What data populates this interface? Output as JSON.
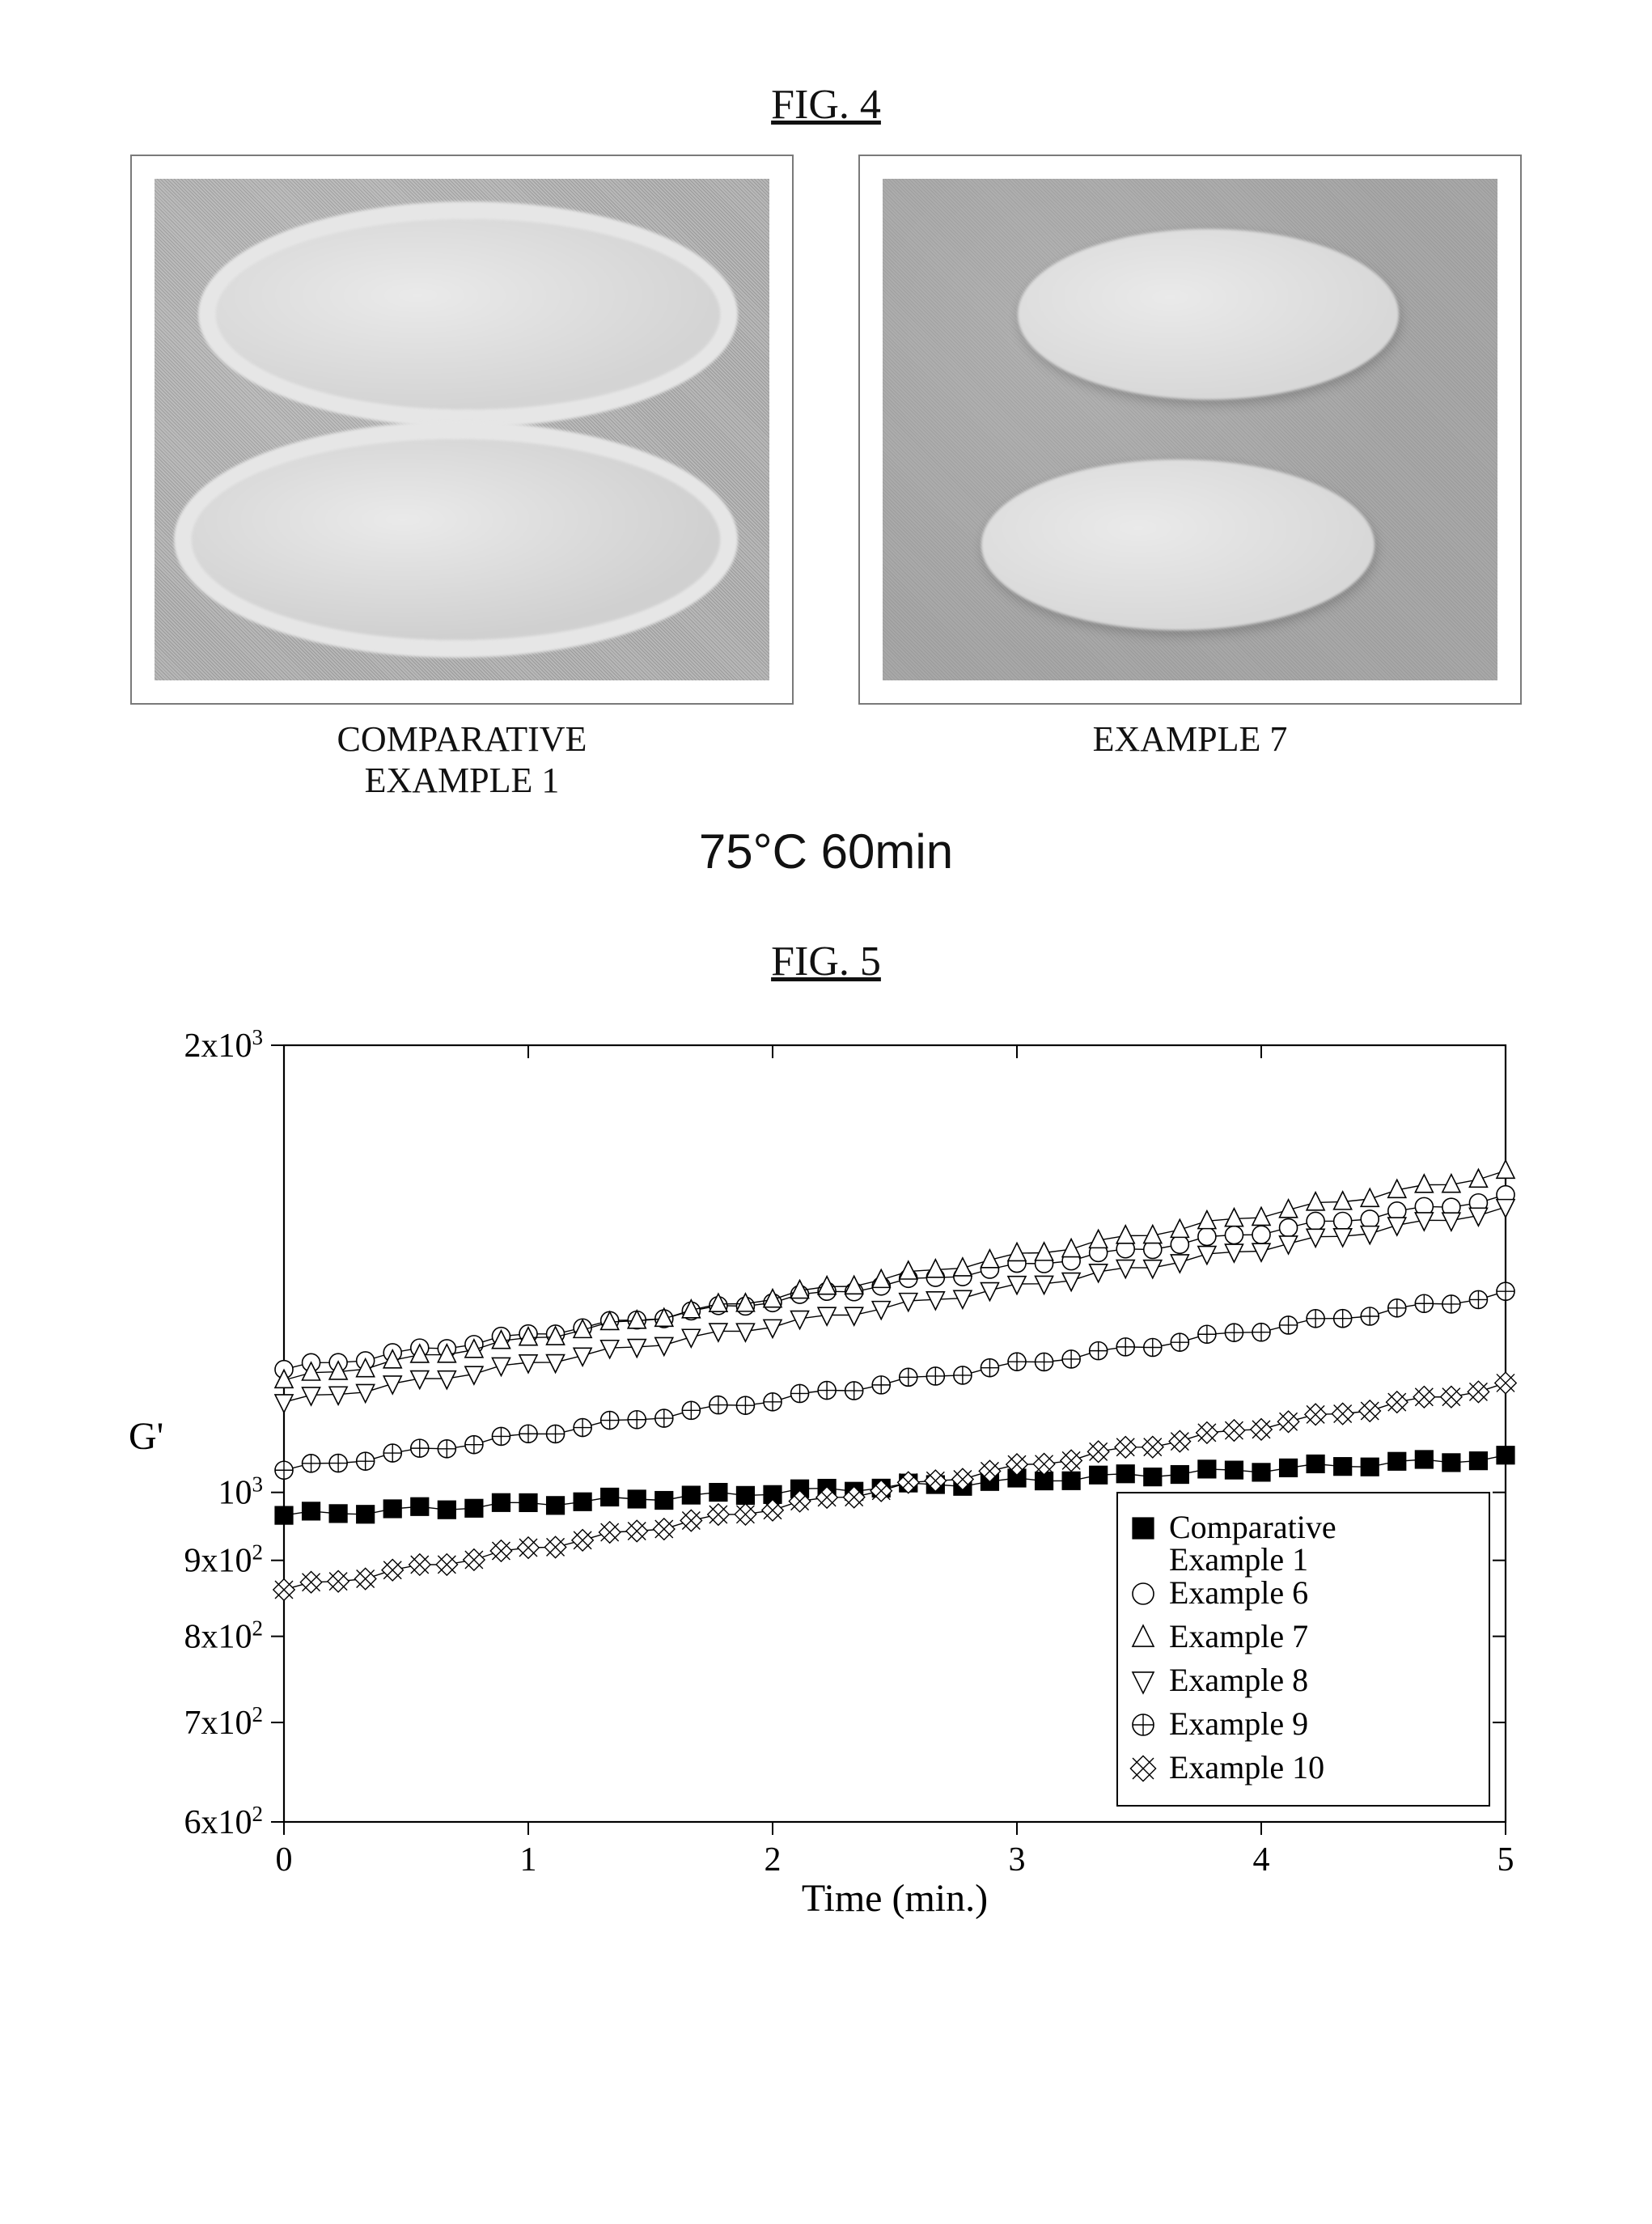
{
  "figure4": {
    "title": "FIG. 4",
    "title_fontsize": 52,
    "condition_text": "75°C 60min",
    "condition_fontsize": 60,
    "panels": [
      {
        "caption": "COMPARATIVE\nEXAMPLE 1",
        "caption_fontsize": 44,
        "frame_border": "#7a7a7a",
        "bg_noise_color": "#b8b8b8",
        "blobs": [
          {
            "top_pct": 8,
            "left_pct": 10,
            "w_pct": 82,
            "h_pct": 38,
            "fill": "#d4d4d4",
            "outline": "#e6e6e6",
            "outline_w": 22
          },
          {
            "top_pct": 52,
            "left_pct": 6,
            "w_pct": 86,
            "h_pct": 40,
            "fill": "#d0d0d0",
            "outline": "#e6e6e6",
            "outline_w": 22
          }
        ]
      },
      {
        "caption": "EXAMPLE 7",
        "caption_fontsize": 44,
        "frame_border": "#7a7a7a",
        "bg_noise_color": "#a8a8a8",
        "blobs": [
          {
            "top_pct": 10,
            "left_pct": 22,
            "w_pct": 62,
            "h_pct": 34,
            "fill": "#d8d8d8",
            "outline": "none",
            "outline_w": 0
          },
          {
            "top_pct": 56,
            "left_pct": 16,
            "w_pct": 64,
            "h_pct": 34,
            "fill": "#d8d8d8",
            "outline": "none",
            "outline_w": 0
          }
        ]
      }
    ]
  },
  "figure5": {
    "title": "FIG. 5",
    "title_fontsize": 52,
    "chart": {
      "type": "line-scatter-log",
      "background_color": "#ffffff",
      "axis_color": "#000000",
      "marker_stroke": "#000000",
      "marker_fill_hollow": "#ffffff",
      "marker_fill_solid": "#000000",
      "line_width": 1.4,
      "marker_size": 11,
      "xlabel": "Time (min.)",
      "ylabel": "G'",
      "label_fontsize": 48,
      "tick_fontsize": 42,
      "xlim": [
        0,
        5
      ],
      "x_ticks": [
        0,
        1,
        2,
        3,
        4,
        5
      ],
      "ylim": [
        600,
        2000
      ],
      "y_scale": "log",
      "y_ticks": [
        {
          "value": 600,
          "label": "6x10",
          "exp": "2"
        },
        {
          "value": 700,
          "label": "7x10",
          "exp": "2"
        },
        {
          "value": 800,
          "label": "8x10",
          "exp": "2"
        },
        {
          "value": 900,
          "label": "9x10",
          "exp": "2"
        },
        {
          "value": 1000,
          "label": "10",
          "exp": "3"
        },
        {
          "value": 2000,
          "label": "2x10",
          "exp": "3"
        }
      ],
      "legend": {
        "position": "bottom-right",
        "box_stroke": "#000000",
        "box_fill": "#ffffff",
        "items": [
          {
            "marker": "square-filled",
            "label": "Comparative\nExample 1"
          },
          {
            "marker": "circle-hollow",
            "label": "Example 6"
          },
          {
            "marker": "triangle-up",
            "label": "Example 7"
          },
          {
            "marker": "triangle-down",
            "label": "Example 8"
          },
          {
            "marker": "circle-cross",
            "label": "Example 9"
          },
          {
            "marker": "x-diamond",
            "label": "Example 10"
          }
        ]
      },
      "series": [
        {
          "name": "Comparative Example 1",
          "marker": "square-filled",
          "y_start": 965,
          "y_end": 1055
        },
        {
          "name": "Example 6",
          "marker": "circle-hollow",
          "y_start": 1210,
          "y_end": 1580
        },
        {
          "name": "Example 7",
          "marker": "triangle-up",
          "y_start": 1190,
          "y_end": 1640
        },
        {
          "name": "Example 8",
          "marker": "triangle-down",
          "y_start": 1150,
          "y_end": 1550
        },
        {
          "name": "Example 9",
          "marker": "circle-cross",
          "y_start": 1035,
          "y_end": 1360
        },
        {
          "name": "Example 10",
          "marker": "x-diamond",
          "y_start": 860,
          "y_end": 1180
        }
      ],
      "points_per_series": 46
    }
  }
}
